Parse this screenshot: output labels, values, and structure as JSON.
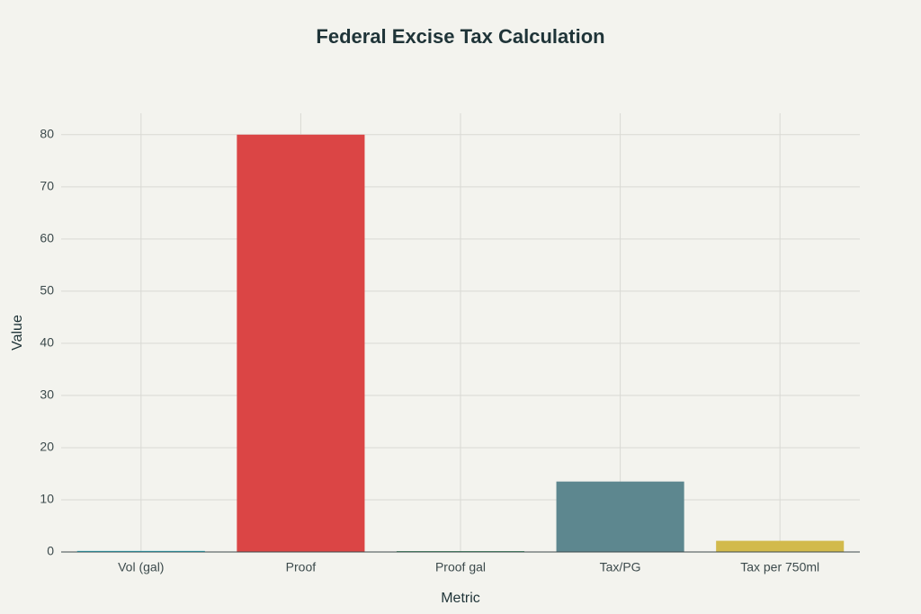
{
  "chart_data": {
    "type": "bar",
    "title": "Federal Excise Tax Calculation",
    "x_label": "Metric",
    "y_label": "Value",
    "categories": [
      "Vol (gal)",
      "Proof",
      "Proof gal",
      "Tax/PG",
      "Tax per 750ml"
    ],
    "values": [
      0.198,
      80,
      0.159,
      13.5,
      2.14
    ],
    "colors": [
      "#1FB8CD",
      "#DB4545",
      "#2E8B57",
      "#5D878F",
      "#D2BA4C"
    ],
    "ylim": [
      0,
      84.1
    ],
    "yticks": [
      0,
      10,
      20,
      30,
      40,
      50,
      60,
      70,
      80
    ],
    "grid": true
  }
}
